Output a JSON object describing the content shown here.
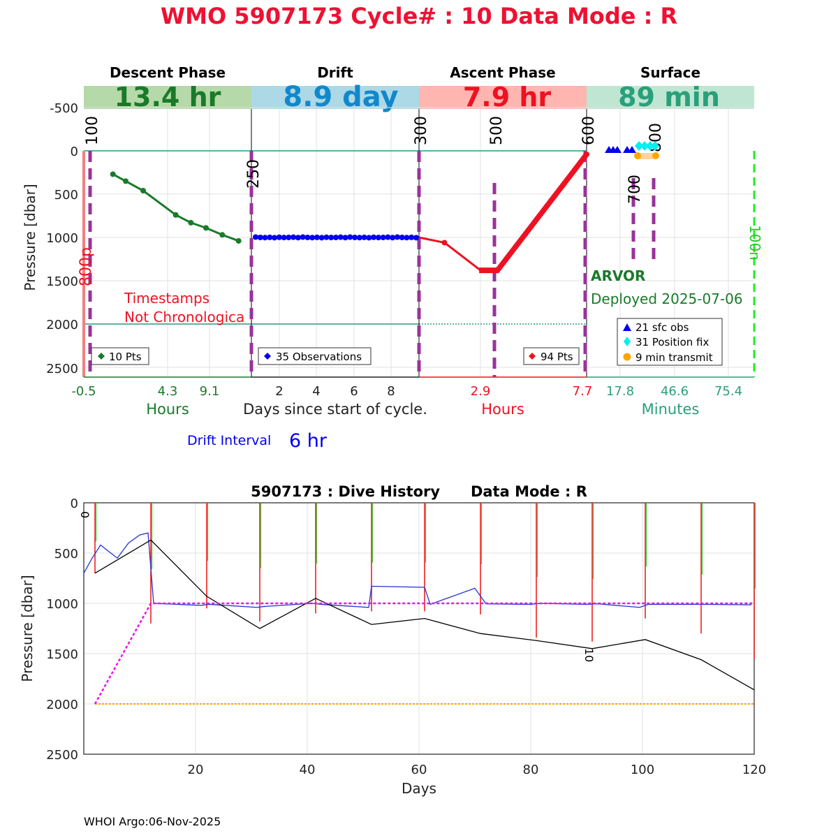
{
  "title": "WMO 5907173   Cycle# : 10   Data Mode : R",
  "footer": "WHOI Argo:06-Nov-2025",
  "colors": {
    "title": "#ee1133",
    "descent": "#1a7a2a",
    "drift": "#0000ee",
    "ascent": "#ee1122",
    "surface": "#2aa07a",
    "purple": "#993399",
    "magenta": "#ee11ee",
    "orange": "#ffa500"
  },
  "phases": [
    {
      "name": "Descent Phase",
      "duration": "13.4 hr"
    },
    {
      "name": "Drift",
      "duration": "8.9 day"
    },
    {
      "name": "Ascent Phase",
      "duration": "7.9 hr"
    },
    {
      "name": "Surface",
      "duration": "89 min"
    }
  ],
  "top_panel": {
    "ylabel": "Pressure [dbar]",
    "yticks": [
      "-500",
      "0",
      "500",
      "1000",
      "1500",
      "2000",
      "2500"
    ],
    "descent_xticks": [
      "-0.5",
      "4.3",
      "9.1"
    ],
    "descent_xlabel": "Hours",
    "drift_xticks": [
      "2",
      "4",
      "6",
      "8"
    ],
    "drift_xlabel": "Days since start of cycle.",
    "ascent_xticks": [
      "2.9",
      "7.7"
    ],
    "ascent_xlabel": "Hours",
    "surface_xticks": [
      "17.8",
      "46.6",
      "75.4"
    ],
    "surface_xlabel": "Minutes",
    "markers": [
      "100",
      "250",
      "300",
      "500",
      "600",
      "700",
      "800",
      "800p",
      "100n"
    ],
    "warning_line1": "Timestamps",
    "warning_line2": "Not Chronologica",
    "float_type": "ARVOR",
    "deployed": "Deployed 2025-07-06",
    "drift_interval_label": "Drift Interval",
    "drift_interval_value": "6 hr",
    "legends": {
      "descent": "10 Pts",
      "drift": "35 Observations",
      "ascent": "94 Pts",
      "surface": [
        "21 sfc obs",
        "31 Position fix",
        "9 min transmit"
      ]
    }
  },
  "bottom_panel": {
    "title": "5907173 : Dive History      Data Mode : R",
    "ylabel": "Pressure [dbar]",
    "xlabel": "Days",
    "xticks": [
      "20",
      "40",
      "60",
      "80",
      "100",
      "120"
    ],
    "yticks": [
      "0",
      "500",
      "1000",
      "1500",
      "2000",
      "2500"
    ],
    "cycle_labels": [
      "0",
      "10"
    ]
  },
  "chart_data": [
    {
      "type": "line",
      "panel": "descent",
      "x_unit": "hours",
      "xlim": [
        -0.5,
        13.9
      ],
      "ylim": [
        2600,
        -650
      ],
      "series": [
        {
          "x": [
            2.0,
            3.1,
            4.6,
            7.4,
            8.7,
            10.0,
            11.4,
            12.8
          ],
          "y": [
            270,
            350,
            460,
            740,
            830,
            890,
            970,
            1040
          ]
        }
      ]
    },
    {
      "type": "scatter",
      "panel": "drift",
      "x_unit": "days",
      "xlim": [
        0.55,
        9.45
      ],
      "ylim": [
        2600,
        -650
      ],
      "series": [
        {
          "y_mean": 1000,
          "count": 35
        }
      ]
    },
    {
      "type": "line",
      "panel": "ascent",
      "x_unit": "hours",
      "xlim": [
        0,
        7.9
      ],
      "ylim": [
        2600,
        -650
      ],
      "series": [
        {
          "x": [
            0,
            1.2,
            2.9,
            3.7,
            7.9
          ],
          "y": [
            1000,
            1060,
            1380,
            1380,
            40
          ]
        }
      ]
    },
    {
      "type": "line",
      "panel": "dive_history",
      "xlabel": "Days",
      "ylabel": "Pressure [dbar]",
      "xlim": [
        0,
        120
      ],
      "ylim": [
        2500,
        0
      ],
      "series": [
        {
          "name": "park_target",
          "x": [
            2,
            12,
            120
          ],
          "y": [
            2000,
            1000,
            1000
          ]
        },
        {
          "name": "profile_target",
          "x": [
            2,
            120
          ],
          "y": [
            2000,
            2000
          ]
        },
        {
          "name": "profile_depth",
          "x": [
            2,
            12,
            22,
            31.5,
            41.5,
            51.5,
            61,
            71,
            81,
            91,
            100.5,
            110.5,
            120
          ],
          "y": [
            700,
            370,
            930,
            1250,
            950,
            1210,
            1150,
            1300,
            1370,
            1450,
            1360,
            1560,
            1860
          ]
        },
        {
          "name": "drift",
          "x": [
            0,
            1.5,
            3,
            6,
            8,
            10,
            11.5,
            12.5,
            21,
            22.5,
            31,
            32.5,
            41,
            42.5,
            51,
            51.5,
            61,
            62,
            70,
            72,
            80,
            82,
            90,
            92,
            99.5,
            101,
            110,
            111,
            119.5
          ],
          "y": [
            700,
            550,
            420,
            550,
            400,
            320,
            300,
            1000,
            1020,
            1010,
            1040,
            1030,
            1000,
            1010,
            1040,
            830,
            840,
            1010,
            850,
            1005,
            1010,
            1000,
            1010,
            1005,
            1040,
            1010,
            1010,
            1010,
            1015
          ]
        }
      ]
    }
  ]
}
